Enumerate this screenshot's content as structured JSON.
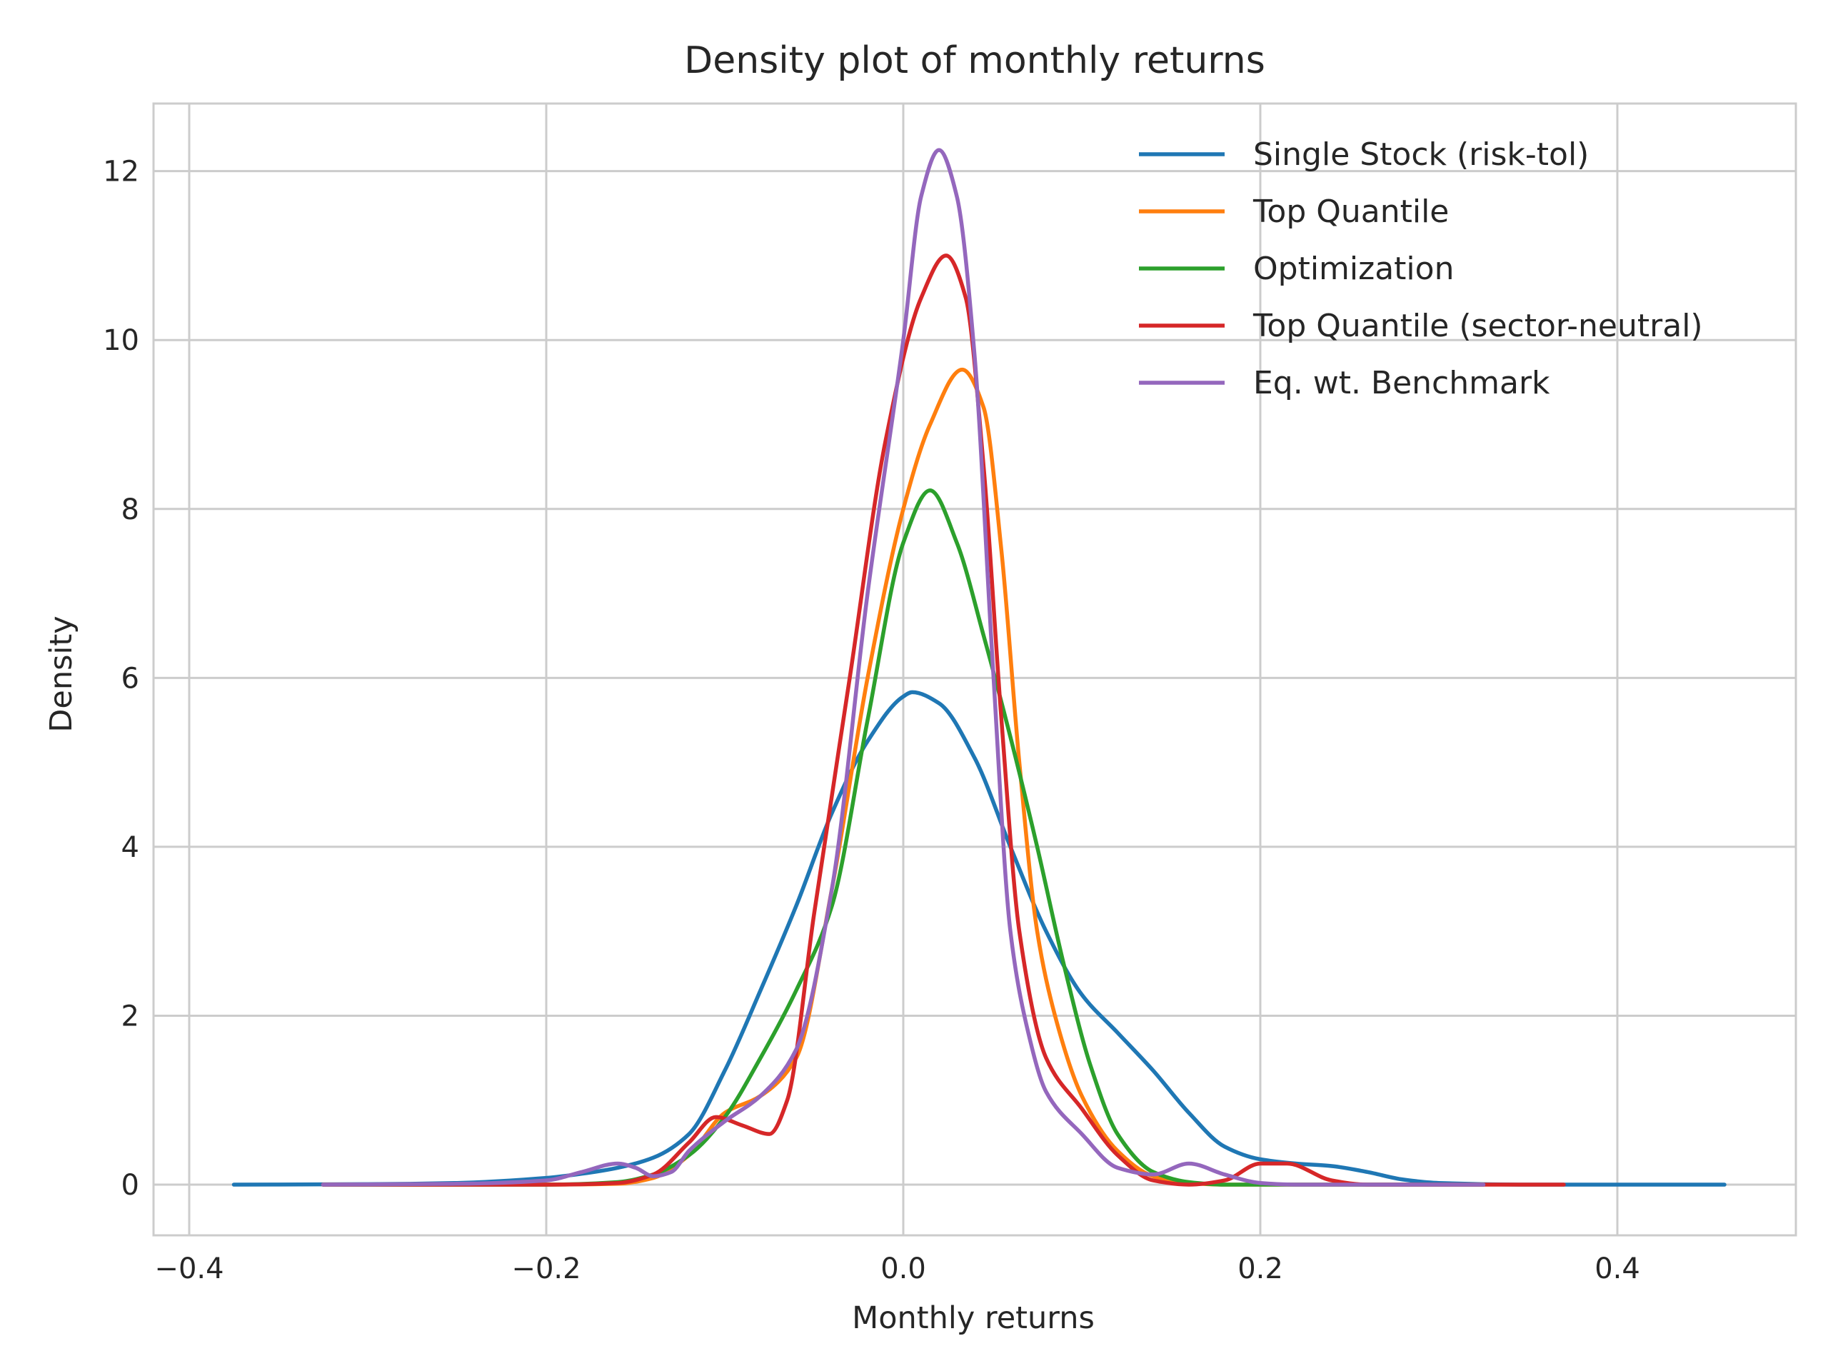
{
  "chart_data": {
    "type": "line",
    "title": "Density plot of monthly returns",
    "xlabel": "Monthly returns",
    "ylabel": "Density",
    "xlim": [
      -0.42,
      0.5
    ],
    "ylim": [
      -0.6,
      12.8
    ],
    "xticks": [
      -0.4,
      -0.2,
      0.0,
      0.2,
      0.4
    ],
    "xtick_labels": [
      "−0.4",
      "−0.2",
      "0.0",
      "0.2",
      "0.4"
    ],
    "yticks": [
      0,
      2,
      4,
      6,
      8,
      10,
      12
    ],
    "ytick_labels": [
      "0",
      "2",
      "4",
      "6",
      "8",
      "10",
      "12"
    ],
    "grid": true,
    "legend_position": "top-right",
    "series": [
      {
        "name": "Single Stock (risk-tol)",
        "color": "#1f77b4",
        "points": [
          [
            -0.375,
            0
          ],
          [
            -0.3,
            0.005
          ],
          [
            -0.25,
            0.02
          ],
          [
            -0.2,
            0.08
          ],
          [
            -0.18,
            0.13
          ],
          [
            -0.16,
            0.2
          ],
          [
            -0.14,
            0.32
          ],
          [
            -0.12,
            0.6
          ],
          [
            -0.1,
            1.35
          ],
          [
            -0.08,
            2.3
          ],
          [
            -0.06,
            3.3
          ],
          [
            -0.04,
            4.4
          ],
          [
            -0.02,
            5.25
          ],
          [
            0.0,
            5.78
          ],
          [
            0.005,
            5.83
          ],
          [
            0.02,
            5.7
          ],
          [
            0.04,
            5.05
          ],
          [
            0.06,
            4.0
          ],
          [
            0.08,
            3.0
          ],
          [
            0.1,
            2.25
          ],
          [
            0.12,
            1.8
          ],
          [
            0.14,
            1.35
          ],
          [
            0.16,
            0.85
          ],
          [
            0.18,
            0.45
          ],
          [
            0.2,
            0.3
          ],
          [
            0.22,
            0.25
          ],
          [
            0.24,
            0.22
          ],
          [
            0.26,
            0.15
          ],
          [
            0.28,
            0.06
          ],
          [
            0.3,
            0.02
          ],
          [
            0.35,
            0.0
          ],
          [
            0.46,
            0.0
          ]
        ]
      },
      {
        "name": "Top Quantile",
        "color": "#ff7f0e",
        "points": [
          [
            -0.325,
            0
          ],
          [
            -0.2,
            0.0
          ],
          [
            -0.16,
            0.01
          ],
          [
            -0.14,
            0.08
          ],
          [
            -0.12,
            0.35
          ],
          [
            -0.1,
            0.85
          ],
          [
            -0.08,
            1.05
          ],
          [
            -0.06,
            1.5
          ],
          [
            -0.04,
            3.5
          ],
          [
            -0.02,
            6.0
          ],
          [
            0.0,
            8.0
          ],
          [
            0.015,
            9.0
          ],
          [
            0.033,
            9.65
          ],
          [
            0.045,
            9.2
          ],
          [
            0.055,
            7.5
          ],
          [
            0.065,
            5.0
          ],
          [
            0.075,
            3.0
          ],
          [
            0.085,
            2.0
          ],
          [
            0.1,
            1.05
          ],
          [
            0.12,
            0.4
          ],
          [
            0.14,
            0.1
          ],
          [
            0.16,
            0.02
          ],
          [
            0.18,
            0.0
          ],
          [
            0.325,
            0.0
          ]
        ]
      },
      {
        "name": "Optimization",
        "color": "#2ca02c",
        "points": [
          [
            -0.325,
            0
          ],
          [
            -0.2,
            0.0
          ],
          [
            -0.16,
            0.03
          ],
          [
            -0.14,
            0.12
          ],
          [
            -0.12,
            0.35
          ],
          [
            -0.1,
            0.8
          ],
          [
            -0.08,
            1.5
          ],
          [
            -0.06,
            2.3
          ],
          [
            -0.04,
            3.3
          ],
          [
            -0.02,
            5.5
          ],
          [
            0.0,
            7.6
          ],
          [
            0.015,
            8.22
          ],
          [
            0.03,
            7.6
          ],
          [
            0.045,
            6.5
          ],
          [
            0.06,
            5.3
          ],
          [
            0.075,
            4.0
          ],
          [
            0.09,
            2.6
          ],
          [
            0.105,
            1.4
          ],
          [
            0.12,
            0.6
          ],
          [
            0.14,
            0.15
          ],
          [
            0.16,
            0.03
          ],
          [
            0.18,
            0.0
          ],
          [
            0.325,
            0.0
          ]
        ]
      },
      {
        "name": "Top Quantile (sector-neutral)",
        "color": "#d62728",
        "points": [
          [
            -0.325,
            0
          ],
          [
            -0.2,
            0.0
          ],
          [
            -0.16,
            0.02
          ],
          [
            -0.14,
            0.12
          ],
          [
            -0.12,
            0.5
          ],
          [
            -0.105,
            0.8
          ],
          [
            -0.09,
            0.7
          ],
          [
            -0.075,
            0.6
          ],
          [
            -0.065,
            1.0
          ],
          [
            -0.05,
            3.2
          ],
          [
            -0.03,
            6.0
          ],
          [
            -0.01,
            8.8
          ],
          [
            0.01,
            10.5
          ],
          [
            0.024,
            11.0
          ],
          [
            0.035,
            10.5
          ],
          [
            0.045,
            8.5
          ],
          [
            0.055,
            5.5
          ],
          [
            0.065,
            3.0
          ],
          [
            0.08,
            1.5
          ],
          [
            0.1,
            0.9
          ],
          [
            0.12,
            0.35
          ],
          [
            0.14,
            0.05
          ],
          [
            0.16,
            0.0
          ],
          [
            0.18,
            0.05
          ],
          [
            0.2,
            0.25
          ],
          [
            0.215,
            0.25
          ],
          [
            0.24,
            0.05
          ],
          [
            0.26,
            0.0
          ],
          [
            0.37,
            0.0
          ]
        ]
      },
      {
        "name": "Eq. wt. Benchmark",
        "color": "#9467bd",
        "points": [
          [
            -0.325,
            0
          ],
          [
            -0.25,
            0.01
          ],
          [
            -0.2,
            0.05
          ],
          [
            -0.18,
            0.15
          ],
          [
            -0.16,
            0.25
          ],
          [
            -0.15,
            0.2
          ],
          [
            -0.14,
            0.1
          ],
          [
            -0.13,
            0.15
          ],
          [
            -0.12,
            0.4
          ],
          [
            -0.1,
            0.75
          ],
          [
            -0.08,
            1.05
          ],
          [
            -0.06,
            1.6
          ],
          [
            -0.04,
            3.5
          ],
          [
            -0.02,
            7.0
          ],
          [
            0.0,
            10.0
          ],
          [
            0.01,
            11.7
          ],
          [
            0.02,
            12.25
          ],
          [
            0.03,
            11.7
          ],
          [
            0.04,
            9.8
          ],
          [
            0.05,
            6.2
          ],
          [
            0.06,
            3.0
          ],
          [
            0.07,
            1.8
          ],
          [
            0.08,
            1.1
          ],
          [
            0.1,
            0.6
          ],
          [
            0.12,
            0.2
          ],
          [
            0.14,
            0.12
          ],
          [
            0.16,
            0.25
          ],
          [
            0.18,
            0.12
          ],
          [
            0.2,
            0.02
          ],
          [
            0.22,
            0.0
          ],
          [
            0.325,
            0.0
          ]
        ]
      }
    ]
  }
}
